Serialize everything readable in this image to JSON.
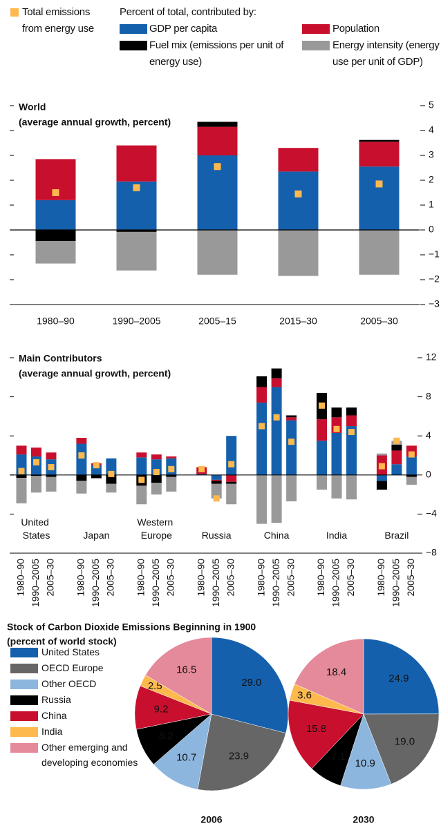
{
  "chart_data": [
    {
      "type": "bar",
      "stacked": true,
      "title": "World",
      "subtitle": "(average annual growth, percent)",
      "legend_title": "Percent of total, contributed by:",
      "categories": [
        "1980–90",
        "1990–2005",
        "2005–15",
        "2015–30",
        "2005–30"
      ],
      "series": [
        {
          "name": "GDP per capita",
          "color": "#1560ac",
          "values": [
            1.2,
            1.95,
            3.0,
            2.35,
            2.55
          ]
        },
        {
          "name": "Population",
          "color": "#c8102e",
          "values": [
            1.65,
            1.45,
            1.15,
            0.95,
            1.0
          ]
        },
        {
          "name": "Fuel mix (emissions per unit of energy use)",
          "color": "#000000",
          "values": [
            -0.45,
            -0.08,
            0.2,
            0,
            0.07
          ]
        },
        {
          "name": "Energy intensity (energy use per unit of GDP)",
          "color": "#999999",
          "values": [
            -0.9,
            -1.55,
            -1.8,
            -1.85,
            -1.8
          ]
        }
      ],
      "total": {
        "name": "Total emissions from energy use",
        "color": "#fdb94d",
        "values": [
          1.5,
          1.7,
          2.55,
          1.45,
          1.85
        ]
      },
      "ylim": [
        -3,
        5
      ],
      "yticks": [
        {
          "value": -3,
          "label": "−3"
        },
        {
          "value": -2,
          "label": "−2"
        },
        {
          "value": -1,
          "label": "−1"
        },
        0,
        1,
        2,
        3,
        4,
        5
      ]
    },
    {
      "type": "bar",
      "stacked": true,
      "title": "Main Contributors",
      "subtitle": "(average annual growth, percent)",
      "groups": [
        "United States",
        "Japan",
        "Western Europe",
        "Russia",
        "China",
        "India",
        "Brazil"
      ],
      "categories": [
        "1980–90",
        "1990–2005",
        "2005–30",
        "1980–90",
        "1990–2005",
        "2005–30",
        "1980–90",
        "1990–2005",
        "2005–30",
        "1980–90",
        "1990–2005",
        "2005–30",
        "1980–90",
        "1990–2005",
        "2005–30",
        "1980–90",
        "1990–2005",
        "2005–30",
        "1980–90",
        "1990–2005",
        "2005–30"
      ],
      "series": [
        {
          "color": "#1560ac",
          "values": [
            2.1,
            1.9,
            1.6,
            3.2,
            1.0,
            1.7,
            1.8,
            1.6,
            1.7,
            0.1,
            -0.5,
            4.0,
            7.4,
            9.0,
            5.6,
            3.5,
            4.3,
            5.0,
            -0.6,
            1.1,
            1.9
          ]
        },
        {
          "color": "#c8102e",
          "values": [
            0.9,
            0.9,
            0.7,
            0.6,
            0.2,
            0,
            0.5,
            0.5,
            0.2,
            0.7,
            -0.1,
            -0.7,
            1.6,
            0.9,
            0.3,
            2.2,
            1.6,
            1.1,
            2.0,
            1.4,
            1.1
          ]
        },
        {
          "color": "#000000",
          "values": [
            -0.3,
            -0.1,
            -0.2,
            -0.6,
            -0.3,
            -0.9,
            -1.1,
            -0.8,
            -0.2,
            0,
            -0.3,
            -0.2,
            1.1,
            1.0,
            0.2,
            2.7,
            1.0,
            0.8,
            -0.9,
            0.6,
            -0.2
          ]
        },
        {
          "color": "#999999",
          "values": [
            -2.6,
            -1.7,
            -1.5,
            -1.3,
            -0.1,
            -0.9,
            -1.9,
            -1.2,
            -1.5,
            0,
            -1.5,
            -2.1,
            -5.0,
            -4.9,
            -2.7,
            -1.5,
            -2.4,
            -2.5,
            0.2,
            0.4,
            -0.8
          ]
        }
      ],
      "total": {
        "color": "#fdb94d",
        "values": [
          0.4,
          1.3,
          0.8,
          2.0,
          1.0,
          0.1,
          -0.5,
          0.3,
          0.6,
          0.6,
          -2.4,
          1.1,
          5.0,
          5.9,
          3.4,
          7.1,
          4.7,
          4.4,
          0.9,
          3.5,
          2.1
        ]
      },
      "ylim": [
        -8,
        12
      ],
      "yticks": [
        {
          "value": -8,
          "label": "−8"
        },
        {
          "value": -4,
          "label": "−4"
        },
        0,
        4,
        8,
        12
      ]
    },
    {
      "type": "pie",
      "title": "Stock of Carbon Dioxide Emissions Beginning in 1900",
      "subtitle": "(percent of world stock)",
      "categories": [
        "United States",
        "OECD Europe",
        "Other OECD",
        "Russia",
        "China",
        "India",
        "Other emerging and developing economies"
      ],
      "colors": [
        "#1560ac",
        "#666666",
        "#8db6df",
        "#000000",
        "#c8102e",
        "#fdb94d",
        "#e58a9b"
      ],
      "series": [
        {
          "name": "2006",
          "values": [
            29.0,
            23.9,
            10.7,
            8.2,
            9.2,
            2.5,
            16.5
          ],
          "value_labels": [
            "29.0",
            "23.9",
            "10.7",
            "8.2",
            "9.2",
            "2.5",
            "16.5"
          ]
        },
        {
          "name": "2030",
          "values": [
            24.9,
            19.0,
            10.9,
            7.1,
            15.8,
            3.6,
            18.4
          ],
          "value_labels": [
            "24.9",
            "19.0",
            "10.9",
            "7.1",
            "15.8",
            "3.6",
            "18.4"
          ]
        }
      ]
    }
  ]
}
